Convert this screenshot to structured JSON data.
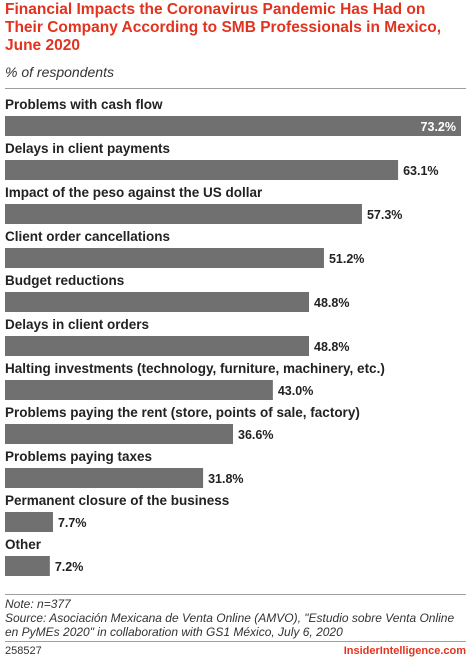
{
  "title": "Financial Impacts the Coronavirus Pandemic Has Had on Their Company According to SMB Professionals in Mexico, June 2020",
  "subtitle": "% of respondents",
  "colors": {
    "bar": "#707070",
    "title": "#e2331e",
    "label": "#222222",
    "inside_value": "#ffffff"
  },
  "chart_data": {
    "type": "bar",
    "orientation": "horizontal",
    "categories": [
      "Problems with cash flow",
      "Delays in client payments",
      "Impact of the peso against the US dollar",
      "Client order cancellations",
      "Budget reductions",
      "Delays in client orders",
      "Halting investments (technology, furniture, machinery, etc.)",
      "Problems paying the rent (store, points of sale, factory)",
      "Problems paying taxes",
      "Permanent closure of the business",
      "Other"
    ],
    "values": [
      73.2,
      63.1,
      57.3,
      51.2,
      48.8,
      48.8,
      43.0,
      36.6,
      31.8,
      7.7,
      7.2
    ],
    "value_labels": [
      "73.2%",
      "63.1%",
      "57.3%",
      "51.2%",
      "48.8%",
      "48.8%",
      "43.0%",
      "36.6%",
      "31.8%",
      "7.7%",
      "7.2%"
    ],
    "xlim": [
      0,
      73.2
    ],
    "grid": false
  },
  "footer": {
    "note": "Note: n=377",
    "source": "Source: Asociación Mexicana de Venta Online (AMVO), \"Estudio sobre Venta Online en PyMEs 2020\" in collaboration with GS1 México, July 6, 2020",
    "chart_id": "258527",
    "brand": "InsiderIntelligence.com"
  }
}
